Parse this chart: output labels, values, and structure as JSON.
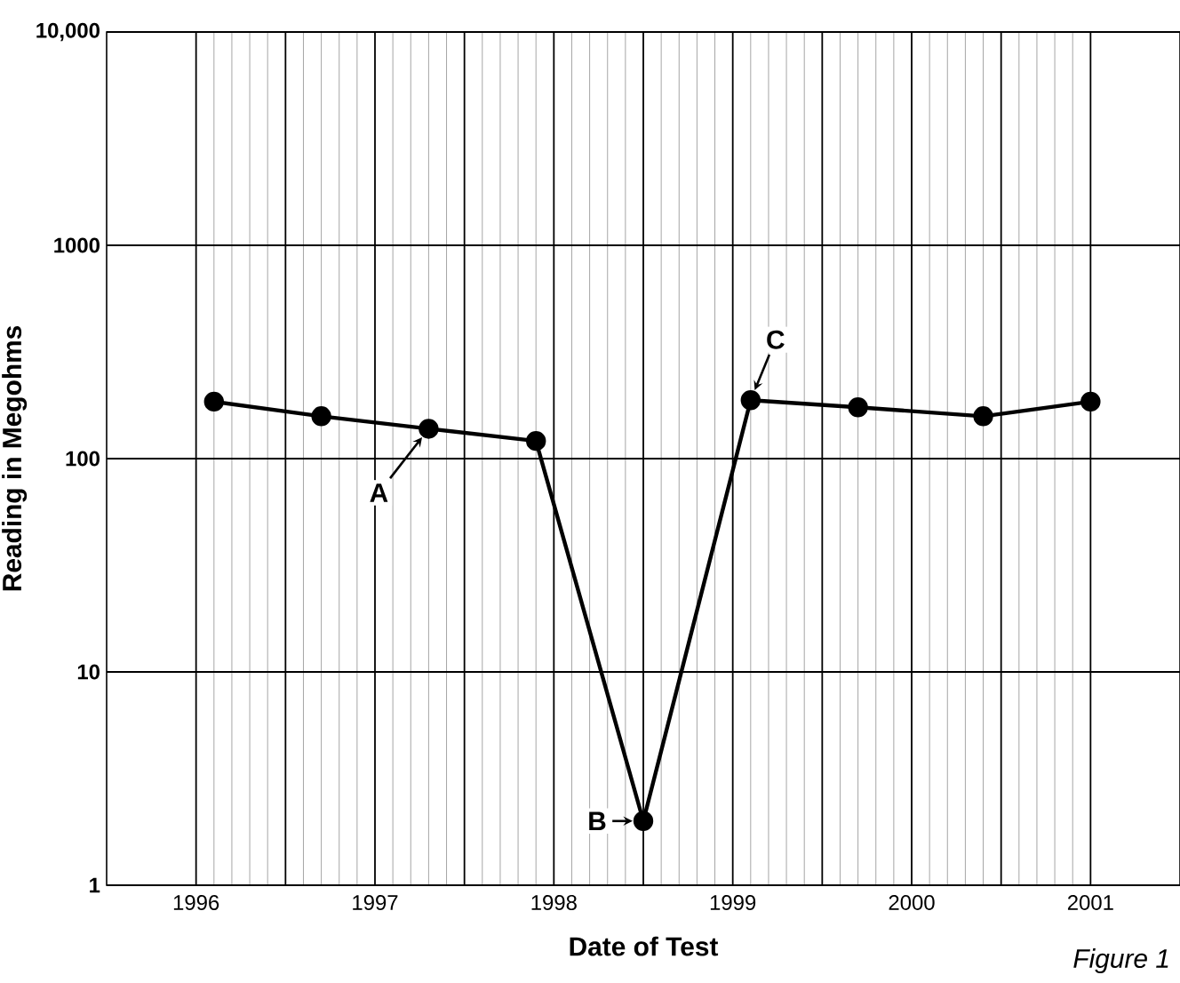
{
  "chart_data": {
    "type": "line",
    "xlabel": "Date of Test",
    "ylabel": "Reading in Megohms",
    "x": [
      1996.6,
      1997.2,
      1997.8,
      1998.4,
      1999.0,
      1999.6,
      2000.2,
      2000.9,
      2001.5
    ],
    "values": [
      185,
      158,
      138,
      121,
      2,
      188,
      174,
      158,
      185
    ],
    "color": "#000000",
    "marker": "circle",
    "line_style": "solid",
    "log": true,
    "grid": true,
    "xlim": [
      1996,
      2002
    ],
    "xticks": [
      {
        "value": 1996.5,
        "label": "1996"
      },
      {
        "value": 1997,
        "label": null
      },
      {
        "value": 1997.5,
        "label": "1997"
      },
      {
        "value": 1998,
        "label": null
      },
      {
        "value": 1998.5,
        "label": "1998"
      },
      {
        "value": 1999,
        "label": null
      },
      {
        "value": 1999.5,
        "label": "1999"
      },
      {
        "value": 2000,
        "label": null
      },
      {
        "value": 2000.5,
        "label": "2000"
      },
      {
        "value": 2001,
        "label": null
      },
      {
        "value": 2001.5,
        "label": "2001"
      }
    ],
    "ylim": [
      1,
      10000
    ],
    "yticks": [
      1,
      10,
      100,
      1000,
      {
        "value": 10000,
        "label": "10,000"
      }
    ],
    "annotations": [
      {
        "text": "A",
        "x": 1997.8,
        "y": 138
      },
      {
        "text": "B",
        "x": 1999.0,
        "y": 2
      },
      {
        "text": "C",
        "x": 1999.6,
        "y": 188
      },
      "Figure 1"
    ]
  }
}
